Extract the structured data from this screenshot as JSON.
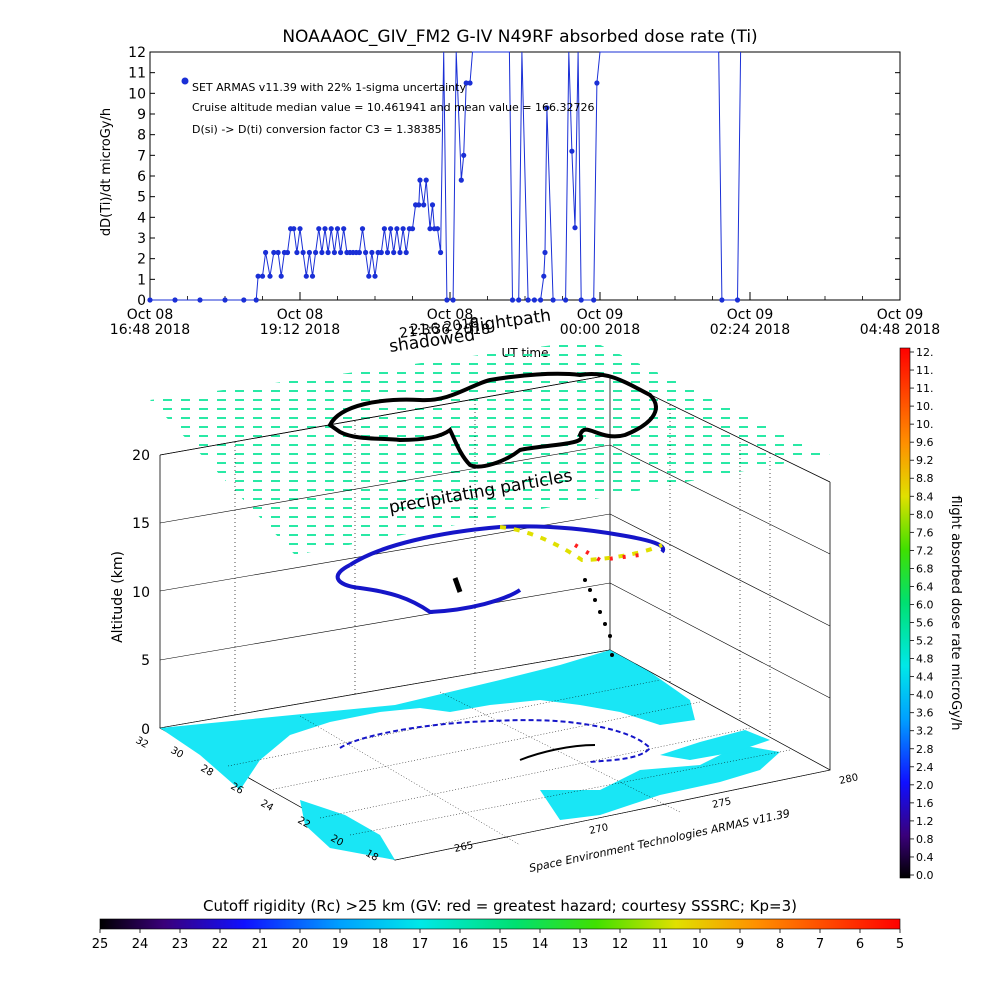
{
  "top_chart": {
    "title": "NOAAAOC_GIV_FM2 G-IV    N49RF   absorbed dose rate (Ti)",
    "ylabel": "dD(Ti)/dt microGy/h",
    "xlabel": "UT time",
    "annotations": [
      "SET ARMAS v11.39 with 22% 1-sigma uncertainty",
      "Cruise altitude median value = 10.461941 and mean value = 166.32726",
      "D(si) -> D(ti) conversion factor C3 = 1.38385"
    ],
    "legend_marker_color": "#1a2fd6"
  },
  "panel_3d": {
    "label_shadowed": "shadowed",
    "label_date": "21:36 2018",
    "label_flightpath": "flightpath",
    "label_precip": "precipitating particles",
    "altitude_label": "Altitude (km)",
    "altitude_ticks": [
      "0",
      "5",
      "10",
      "15",
      "20"
    ],
    "lat_ticks": [
      "32",
      "30",
      "28",
      "26",
      "24",
      "22",
      "20",
      "18"
    ],
    "lon_ticks": [
      "265",
      "270",
      "275",
      "280"
    ],
    "credit": "Space Environment Technologies ARMAS v11.39",
    "ocean_color": "#19e6f5",
    "grid_color": "#1ee8a0"
  },
  "right_colorbar": {
    "title": "flight absorbed dose rate microGy/h",
    "ticks": [
      "12.",
      "11.",
      "11.",
      "10.",
      "10.",
      "9.6",
      "9.2",
      "8.8",
      "8.4",
      "8.0",
      "7.6",
      "7.2",
      "6.8",
      "6.4",
      "6.0",
      "5.6",
      "5.2",
      "4.8",
      "4.4",
      "4.0",
      "3.6",
      "3.2",
      "2.8",
      "2.4",
      "2.0",
      "1.6",
      "1.2",
      "0.8",
      "0.4",
      "0.0"
    ]
  },
  "bottom_colorbar": {
    "title": "Cutoff rigidity (Rc) >25 km (GV: red = greatest hazard; courtesy SSSRC; Kp=3)",
    "ticks": [
      "25",
      "24",
      "23",
      "22",
      "21",
      "20",
      "19",
      "18",
      "17",
      "16",
      "15",
      "14",
      "13",
      "12",
      "11",
      "10",
      "9",
      "8",
      "7",
      "6",
      "5"
    ]
  },
  "chart_data": {
    "type": "line",
    "title": "NOAAAOC_GIV_FM2 G-IV    N49RF   absorbed dose rate (Ti)",
    "xlabel": "UT time",
    "ylabel": "dD(Ti)/dt microGy/h",
    "ylim": [
      0,
      12
    ],
    "yticks": [
      "0",
      "1",
      "2",
      "3",
      "4",
      "5",
      "6",
      "7",
      "8",
      "9",
      "10",
      "11",
      "12"
    ],
    "xlim_hours": [
      16.8,
      28.8
    ],
    "xticks": [
      {
        "h": 16.8,
        "line1": "Oct 08",
        "line2": "16:48 2018"
      },
      {
        "h": 19.2,
        "line1": "Oct 08",
        "line2": "19:12 2018"
      },
      {
        "h": 21.6,
        "line1": "Oct 08",
        "line2": "21:36 2018"
      },
      {
        "h": 24.0,
        "line1": "Oct 09",
        "line2": "00:00 2018"
      },
      {
        "h": 26.4,
        "line1": "Oct 09",
        "line2": "02:24 2018"
      },
      {
        "h": 28.8,
        "line1": "Oct 09",
        "line2": "04:48 2018"
      }
    ],
    "series": [
      {
        "color": "#1a2fd6",
        "points": [
          [
            16.8,
            0
          ],
          [
            17.2,
            0
          ],
          [
            17.6,
            0
          ],
          [
            18.0,
            0
          ],
          [
            18.3,
            0
          ],
          [
            18.5,
            0
          ],
          [
            18.53,
            1.15
          ],
          [
            18.6,
            1.15
          ],
          [
            18.65,
            2.3
          ],
          [
            18.72,
            1.15
          ],
          [
            18.78,
            2.3
          ],
          [
            18.85,
            2.3
          ],
          [
            18.9,
            1.15
          ],
          [
            18.95,
            2.3
          ],
          [
            19.0,
            2.3
          ],
          [
            19.05,
            3.45
          ],
          [
            19.1,
            3.45
          ],
          [
            19.15,
            2.3
          ],
          [
            19.2,
            3.45
          ],
          [
            19.25,
            2.3
          ],
          [
            19.3,
            1.15
          ],
          [
            19.35,
            2.3
          ],
          [
            19.4,
            1.15
          ],
          [
            19.45,
            2.3
          ],
          [
            19.5,
            3.45
          ],
          [
            19.55,
            2.3
          ],
          [
            19.6,
            3.45
          ],
          [
            19.65,
            2.3
          ],
          [
            19.7,
            3.45
          ],
          [
            19.75,
            2.3
          ],
          [
            19.8,
            3.45
          ],
          [
            19.85,
            2.3
          ],
          [
            19.9,
            3.45
          ],
          [
            19.95,
            2.3
          ],
          [
            20.0,
            2.3
          ],
          [
            20.05,
            2.3
          ],
          [
            20.1,
            2.3
          ],
          [
            20.15,
            2.3
          ],
          [
            20.2,
            3.45
          ],
          [
            20.25,
            2.3
          ],
          [
            20.3,
            1.15
          ],
          [
            20.35,
            2.3
          ],
          [
            20.4,
            1.15
          ],
          [
            20.45,
            2.3
          ],
          [
            20.5,
            2.3
          ],
          [
            20.55,
            3.45
          ],
          [
            20.6,
            2.3
          ],
          [
            20.65,
            3.45
          ],
          [
            20.7,
            2.3
          ],
          [
            20.75,
            3.45
          ],
          [
            20.8,
            2.3
          ],
          [
            20.85,
            3.45
          ],
          [
            20.9,
            2.3
          ],
          [
            20.95,
            3.45
          ],
          [
            21.0,
            3.45
          ],
          [
            21.05,
            4.6
          ],
          [
            21.1,
            4.6
          ],
          [
            21.12,
            5.8
          ],
          [
            21.18,
            4.6
          ],
          [
            21.22,
            5.8
          ],
          [
            21.28,
            3.45
          ],
          [
            21.32,
            4.6
          ],
          [
            21.35,
            3.45
          ],
          [
            21.4,
            3.45
          ],
          [
            21.45,
            2.3
          ],
          [
            21.5,
            12
          ],
          [
            21.55,
            0
          ],
          [
            21.65,
            0
          ],
          [
            21.7,
            12
          ],
          [
            21.78,
            5.8
          ],
          [
            21.82,
            7.0
          ],
          [
            21.86,
            10.5
          ],
          [
            21.92,
            10.5
          ],
          [
            21.96,
            12
          ],
          [
            22.55,
            12
          ],
          [
            22.6,
            0
          ],
          [
            22.7,
            0
          ],
          [
            22.75,
            12
          ],
          [
            22.85,
            0
          ],
          [
            22.95,
            0
          ],
          [
            23.05,
            0
          ],
          [
            23.1,
            1.15
          ],
          [
            23.12,
            2.3
          ],
          [
            23.15,
            9.3
          ],
          [
            23.25,
            0
          ],
          [
            23.45,
            0
          ],
          [
            23.5,
            12
          ],
          [
            23.55,
            7.2
          ],
          [
            23.6,
            3.5
          ],
          [
            23.65,
            12
          ],
          [
            23.7,
            0
          ],
          [
            23.9,
            0
          ],
          [
            23.95,
            10.5
          ],
          [
            24.0,
            12
          ],
          [
            25.9,
            12
          ],
          [
            25.95,
            0
          ],
          [
            26.2,
            0
          ],
          [
            26.25,
            12
          ]
        ]
      }
    ]
  }
}
